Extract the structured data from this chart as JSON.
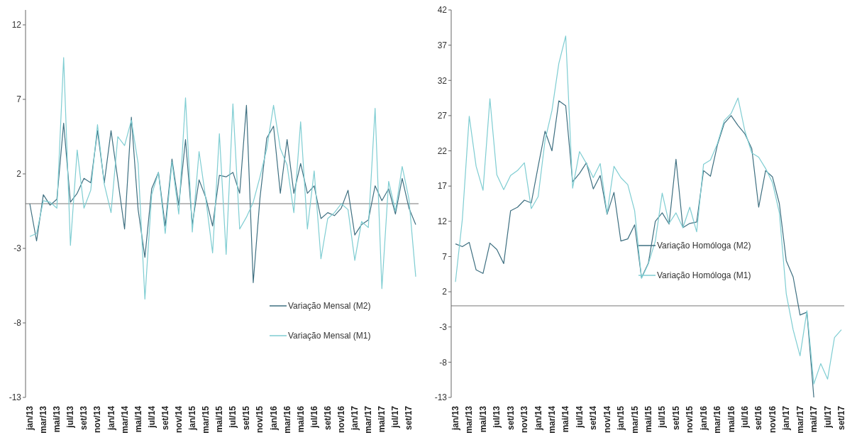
{
  "chart_data": [
    {
      "type": "line",
      "categories": [
        "jan/13",
        null,
        "mar/13",
        null,
        "mai/13",
        null,
        "jul/13",
        null,
        "set/13",
        null,
        "nov/13",
        null,
        "jan/14",
        null,
        "mar/14",
        null,
        "mai/14",
        null,
        "jul/14",
        null,
        "set/14",
        null,
        "nov/14",
        null,
        "jan/15",
        null,
        "mar/15",
        null,
        "mai/15",
        null,
        "jul/15",
        null,
        "set/15",
        null,
        "nov/15",
        null,
        "jan/16",
        null,
        "mar/16",
        null,
        "mai/16",
        null,
        "jul/16",
        null,
        "set/16",
        null,
        "nov/16",
        null,
        "jan/17",
        null,
        "mar/17",
        null,
        "mai/17",
        null,
        "jul/17",
        null,
        "set/17",
        null
      ],
      "series": [
        {
          "name": "Variação Mensal (M2)",
          "color": "#3e6f80",
          "values": [
            0,
            -2.5,
            0.6,
            -0.1,
            0.3,
            5.4,
            0.1,
            0.7,
            1.7,
            1.4,
            4.9,
            1.4,
            4.9,
            1.6,
            -1.7,
            5.8,
            -0.4,
            -3.6,
            1.0,
            2.1,
            -1.5,
            3.0,
            -0.1,
            4.3,
            -1.4,
            1.6,
            0.4,
            -1.5,
            1.9,
            1.8,
            2.1,
            0.7,
            6.6,
            -5.3,
            0.4,
            4.4,
            5.2,
            0.7,
            4.3,
            0.7,
            2.7,
            0.7,
            1.2,
            -1.0,
            -0.6,
            -0.8,
            -0.3,
            0.9,
            -2.1,
            -1.4,
            -1.1,
            1.2,
            0.2,
            1.0,
            -0.7,
            1.7,
            -0.3,
            -1.4
          ]
        },
        {
          "name": "Variação Mensal (M1)",
          "color": "#7fcdd2",
          "values": [
            -2.2,
            -2.0,
            0.2,
            0.1,
            -0.3,
            9.8,
            -2.8,
            3.6,
            -0.3,
            0.9,
            5.3,
            1.3,
            -0.6,
            4.5,
            3.9,
            5.6,
            2.7,
            -6.4,
            0.6,
            2.1,
            -2.0,
            2.8,
            -0.7,
            7.1,
            -1.9,
            3.5,
            0.3,
            -3.3,
            4.7,
            -3.4,
            6.7,
            -1.7,
            -0.9,
            0.1,
            1.8,
            3.7,
            6.6,
            3.7,
            2.6,
            -0.6,
            5.5,
            -1.7,
            2.2,
            -3.7,
            -1.0,
            -0.6,
            0,
            -0.4,
            -3.8,
            -1.2,
            -1.6,
            6.4,
            -5.7,
            1.5,
            -0.5,
            2.5,
            0.3,
            -4.9
          ]
        }
      ],
      "ylim": [
        -13,
        13
      ],
      "yticks": [
        -13,
        -8,
        -3,
        2,
        7,
        12
      ],
      "ref_lines": [
        {
          "axis": "y",
          "value": 0
        }
      ],
      "grid": false,
      "legend": "bottom right",
      "line_style": "solid"
    },
    {
      "type": "line",
      "categories": [
        "jan/13",
        null,
        "mar/13",
        null,
        "mai/13",
        null,
        "jul/13",
        null,
        "set/13",
        null,
        "nov/13",
        null,
        "jan/14",
        null,
        "mar/14",
        null,
        "mai/14",
        null,
        "jul/14",
        null,
        "set/14",
        null,
        "nov/14",
        null,
        "jan/15",
        null,
        "mar/15",
        null,
        "mai/15",
        null,
        "jul/15",
        null,
        "set/15",
        null,
        "nov/15",
        null,
        "jan/16",
        null,
        "mar/16",
        null,
        "mai/16",
        null,
        "jul/16",
        null,
        "set/16",
        null,
        "nov/16",
        null,
        "jan/17",
        null,
        "mar/17",
        null,
        "mai/17",
        null,
        "jul/17",
        null,
        "set/17"
      ],
      "series": [
        {
          "name": "Variação Homóloga (M2)",
          "color": "#3e6f80",
          "values": [
            8.8,
            8.4,
            9.0,
            5.1,
            4.6,
            8.9,
            8.0,
            6.0,
            13.5,
            14.0,
            15.0,
            14.6,
            19.8,
            24.8,
            22.0,
            29.1,
            28.4,
            17.6,
            18.8,
            20.3,
            16.6,
            18.5,
            13.0,
            16.1,
            9.2,
            9.5,
            11.5,
            4.0,
            6.1,
            12.0,
            13.2,
            11.6,
            20.8,
            11.1,
            11.7,
            11.9,
            19.2,
            18.4,
            22.8,
            25.9,
            27.0,
            25.6,
            24.4,
            22.3,
            14.0,
            19.2,
            18.3,
            14.5,
            6.4,
            4.1,
            -1.3,
            -0.9,
            -13,
            null,
            null,
            null,
            null
          ]
        },
        {
          "name": "Variação Homóloga (M1)",
          "color": "#7fcdd2",
          "values": [
            3.4,
            12.3,
            26.9,
            19.8,
            16.4,
            29.4,
            18.6,
            16.5,
            18.5,
            19.2,
            20.3,
            13.8,
            15.5,
            23.5,
            27.7,
            34.4,
            38.3,
            16.7,
            21.9,
            20.2,
            18.2,
            20.2,
            13.1,
            19.8,
            18.2,
            17.2,
            13.5,
            3.9,
            6.0,
            9.2,
            16.0,
            11.7,
            13.2,
            11.1,
            14.0,
            10.5,
            20.1,
            20.7,
            23.0,
            26.3,
            27.3,
            29.5,
            24.8,
            21.7,
            21.1,
            19.5,
            17.5,
            13.2,
            1.7,
            -3.4,
            -7.1,
            -0.7,
            -11.1,
            -8.2,
            -10.4,
            -4.5,
            -3.4
          ]
        }
      ],
      "ylim": [
        -13,
        42
      ],
      "yticks": [
        -13,
        -8,
        -3,
        2,
        7,
        12,
        17,
        22,
        27,
        32,
        37,
        42
      ],
      "ref_lines": [
        {
          "axis": "y",
          "value": 0
        }
      ],
      "grid": false,
      "legend": "center",
      "line_style": "solid"
    }
  ]
}
